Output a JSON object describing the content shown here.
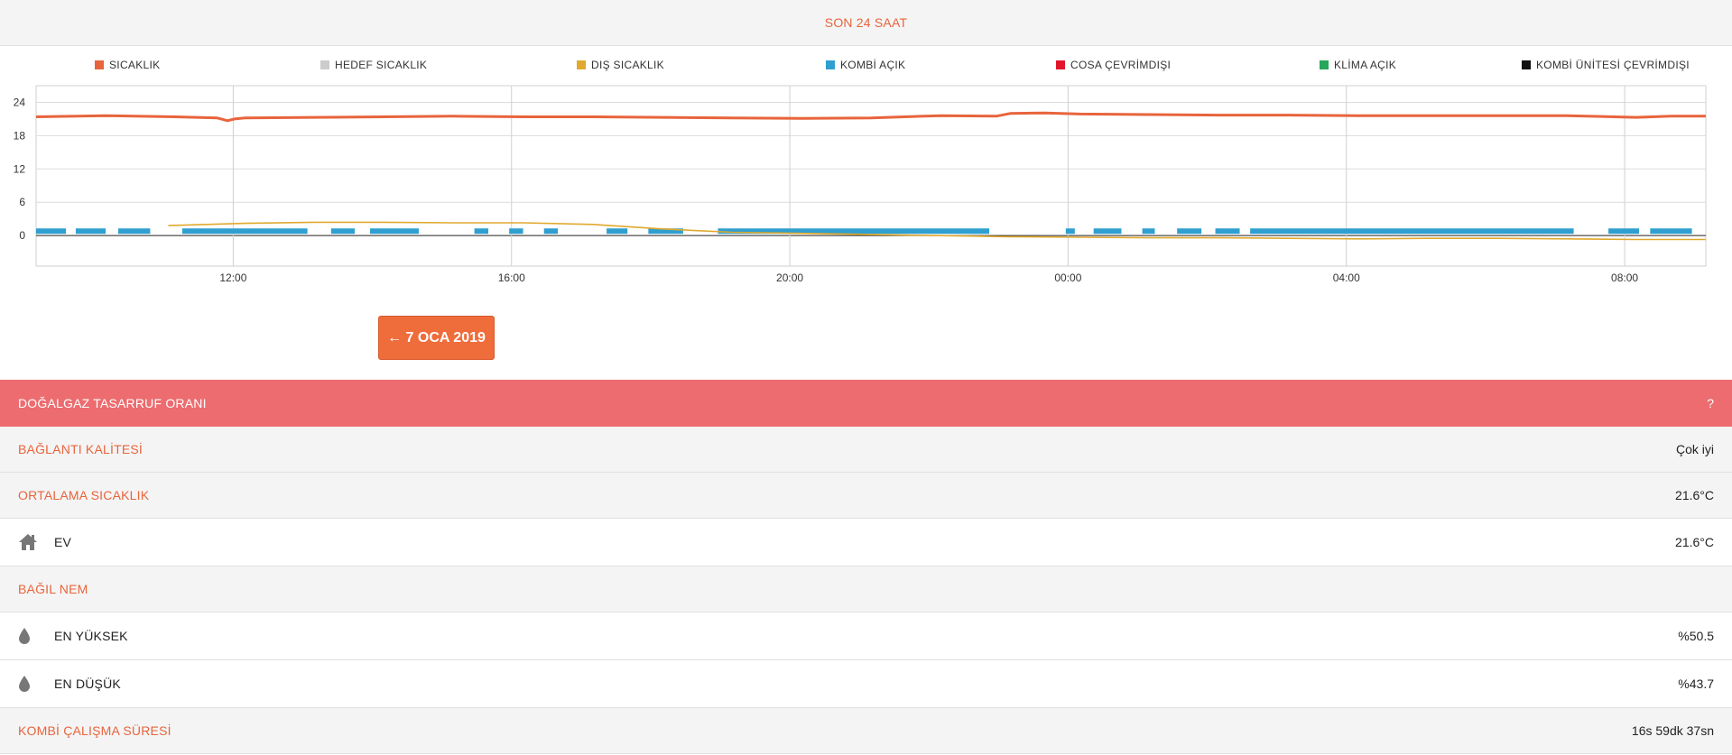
{
  "header": {
    "title": "SON 24 SAAT"
  },
  "legend": [
    {
      "label": "SICAKLIK",
      "color": "#e8643c"
    },
    {
      "label": "HEDEF SICAKLIK",
      "color": "#cccccc"
    },
    {
      "label": "DIŞ SICAKLIK",
      "color": "#e0a92e"
    },
    {
      "label": "KOMBİ AÇIK",
      "color": "#2f9fd0"
    },
    {
      "label": "COSA ÇEVRİMDIŞI",
      "color": "#e0162b"
    },
    {
      "label": "KLİMA AÇIK",
      "color": "#26a65b"
    },
    {
      "label": "KOMBİ ÜNİTESİ ÇEVRİMDIŞI",
      "color": "#111111"
    }
  ],
  "chart_data": {
    "type": "line",
    "title": "",
    "xlabel": "",
    "ylabel": "",
    "x_range": [
      "09:10",
      "09:10 +1"
    ],
    "x_ticks": [
      "12:00",
      "16:00",
      "20:00",
      "00:00",
      "04:00",
      "08:00"
    ],
    "y_ticks": [
      24,
      18,
      12,
      6,
      0
    ],
    "ylim": [
      -5.5,
      27
    ],
    "grid": true,
    "series": [
      {
        "name": "SICAKLIK",
        "color": "#e8643c",
        "x_hours": [
          0,
          1,
          2,
          2.6,
          2.75,
          2.85,
          3,
          4,
          5,
          6,
          7,
          8,
          9,
          10,
          11,
          12,
          13,
          13.8,
          14,
          14.5,
          15,
          16,
          17,
          18,
          19,
          20,
          21,
          22,
          23,
          23.5,
          24
        ],
        "values": [
          21.4,
          21.6,
          21.4,
          21.2,
          20.7,
          21.0,
          21.2,
          21.3,
          21.4,
          21.5,
          21.4,
          21.4,
          21.3,
          21.2,
          21.1,
          21.2,
          21.6,
          21.5,
          22.0,
          22.1,
          21.9,
          21.8,
          21.7,
          21.7,
          21.6,
          21.6,
          21.6,
          21.6,
          21.3,
          21.5,
          21.5
        ]
      },
      {
        "name": "DIŞ SICAKLIK",
        "color": "#e0a92e",
        "x_hours": [
          1.9,
          3,
          4,
          5,
          6,
          7,
          8,
          9,
          10,
          11,
          12,
          13,
          14,
          15,
          16,
          17,
          18,
          19,
          20,
          21,
          22,
          23,
          24
        ],
        "values": [
          1.8,
          2.2,
          2.4,
          2.4,
          2.3,
          2.3,
          2.0,
          1.2,
          0.6,
          0.4,
          0.2,
          0.0,
          -0.2,
          -0.3,
          -0.4,
          -0.4,
          -0.5,
          -0.6,
          -0.5,
          -0.5,
          -0.6,
          -0.7,
          -0.7
        ]
      }
    ],
    "boiler_on": {
      "name": "KOMBİ AÇIK",
      "color": "#2f9fd0",
      "level": 0.8,
      "intervals": [
        [
          0.0,
          0.43
        ],
        [
          0.57,
          1.0
        ],
        [
          1.18,
          1.64
        ],
        [
          2.1,
          3.9
        ],
        [
          4.24,
          4.58
        ],
        [
          4.8,
          5.5
        ],
        [
          6.3,
          6.5
        ],
        [
          6.8,
          7.0
        ],
        [
          7.3,
          7.5
        ],
        [
          8.2,
          8.5
        ],
        [
          8.8,
          9.3
        ],
        [
          9.8,
          13.7
        ],
        [
          14.8,
          14.93
        ],
        [
          15.2,
          15.6
        ],
        [
          15.9,
          16.08
        ],
        [
          16.4,
          16.75
        ],
        [
          16.95,
          17.3
        ],
        [
          17.45,
          22.1
        ],
        [
          22.6,
          23.04
        ],
        [
          23.2,
          23.8
        ]
      ]
    }
  },
  "prev_button": {
    "label": "← 7 OCA 2019"
  },
  "savings": {
    "label": "DOĞALGAZ TASARRUF ORANI",
    "help": "?"
  },
  "connection": {
    "label": "BAĞLANTI KALİTESİ",
    "value": "Çok iyi"
  },
  "avg_temp": {
    "label": "ORTALAMA SICAKLIK",
    "value": "21.6°C"
  },
  "home": {
    "label": "EV",
    "value": "21.6°C",
    "icon": "home-icon"
  },
  "humidity": {
    "label": "BAĞIL NEM"
  },
  "hum_max": {
    "label": "EN YÜKSEK",
    "value": "%50.5",
    "icon": "drop-icon"
  },
  "hum_min": {
    "label": "EN DÜŞÜK",
    "value": "%43.7",
    "icon": "drop-icon"
  },
  "runtime": {
    "label": "KOMBİ ÇALIŞMA SÜRESİ",
    "value": "16s 59dk 37sn"
  }
}
